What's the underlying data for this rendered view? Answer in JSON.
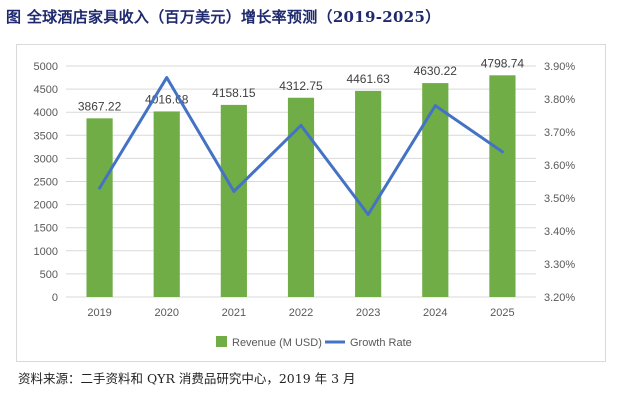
{
  "figure_title": "图 全球酒店家具收入（百万美元）增长率预测（2019-2025）",
  "source_text": "资料来源：二手资料和 QYR 消费品研究中心，2019 年 3 月",
  "chart_data": {
    "type": "bar",
    "categories": [
      "2019",
      "2020",
      "2021",
      "2022",
      "2023",
      "2024",
      "2025"
    ],
    "series": [
      {
        "name": "Revenue (M USD)",
        "type": "bar",
        "axis": "left",
        "color": "#70ad47",
        "values": [
          3867.22,
          4016.68,
          4158.15,
          4312.75,
          4461.63,
          4630.22,
          4798.74
        ],
        "labels": [
          "3867.22",
          "4016.68",
          "4158.15",
          "4312.75",
          "4461.63",
          "4630.22",
          "4798.74"
        ]
      },
      {
        "name": "Growth Rate",
        "type": "line",
        "axis": "right",
        "color": "#4472c4",
        "values": [
          3.53,
          3.865,
          3.52,
          3.72,
          3.45,
          3.78,
          3.64
        ]
      }
    ],
    "left_axis": {
      "ylim": [
        0,
        5000
      ],
      "ticks": [
        0,
        500,
        1000,
        1500,
        2000,
        2500,
        3000,
        3500,
        4000,
        4500,
        5000
      ],
      "tick_labels": [
        "0",
        "500",
        "1000",
        "1500",
        "2000",
        "2500",
        "3000",
        "3500",
        "4000",
        "4500",
        "5000"
      ]
    },
    "right_axis": {
      "ylim": [
        3.2,
        3.9
      ],
      "ticks": [
        3.2,
        3.3,
        3.4,
        3.5,
        3.6,
        3.7,
        3.8,
        3.9
      ],
      "tick_labels": [
        "3.20%",
        "3.30%",
        "3.40%",
        "3.50%",
        "3.60%",
        "3.70%",
        "3.80%",
        "3.90%"
      ]
    },
    "grid": true,
    "legend_position": "bottom",
    "grid_color": "#d9d9d9",
    "axis_text_color": "#595959"
  }
}
